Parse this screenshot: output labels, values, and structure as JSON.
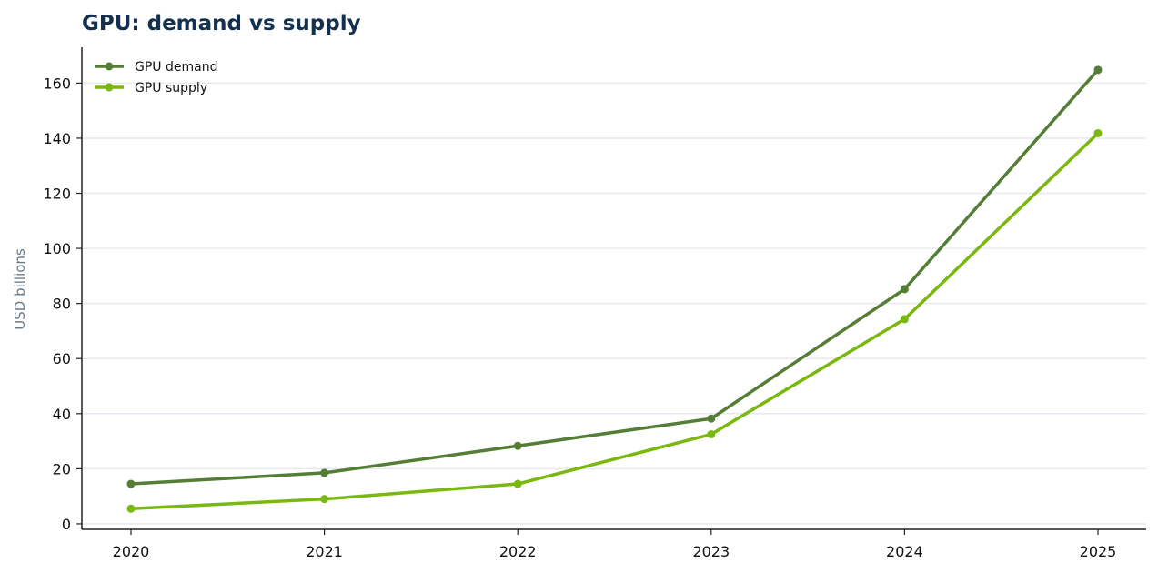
{
  "chart_data": {
    "type": "line",
    "title": "GPU: demand vs supply",
    "xlabel": "",
    "ylabel": "USD billions",
    "categories": [
      "2020",
      "2021",
      "2022",
      "2023",
      "2024",
      "2025"
    ],
    "series": [
      {
        "name": "GPU demand",
        "color": "#547d35",
        "values": [
          14.5,
          18.5,
          28.3,
          38.2,
          85.2,
          164.8
        ]
      },
      {
        "name": "GPU supply",
        "color": "#7ab80f",
        "values": [
          5.5,
          9.0,
          14.5,
          32.5,
          74.3,
          141.8
        ]
      }
    ],
    "ylim": [
      -2,
      173
    ],
    "yticks": [
      0,
      20,
      40,
      60,
      80,
      100,
      120,
      140,
      160
    ],
    "grid": "horizontal",
    "legend": "top-left",
    "colors": {
      "title": "#14304f",
      "grid": "#e6e9ef",
      "axis": "#222222",
      "ylabel": "#6b7a8a"
    }
  }
}
